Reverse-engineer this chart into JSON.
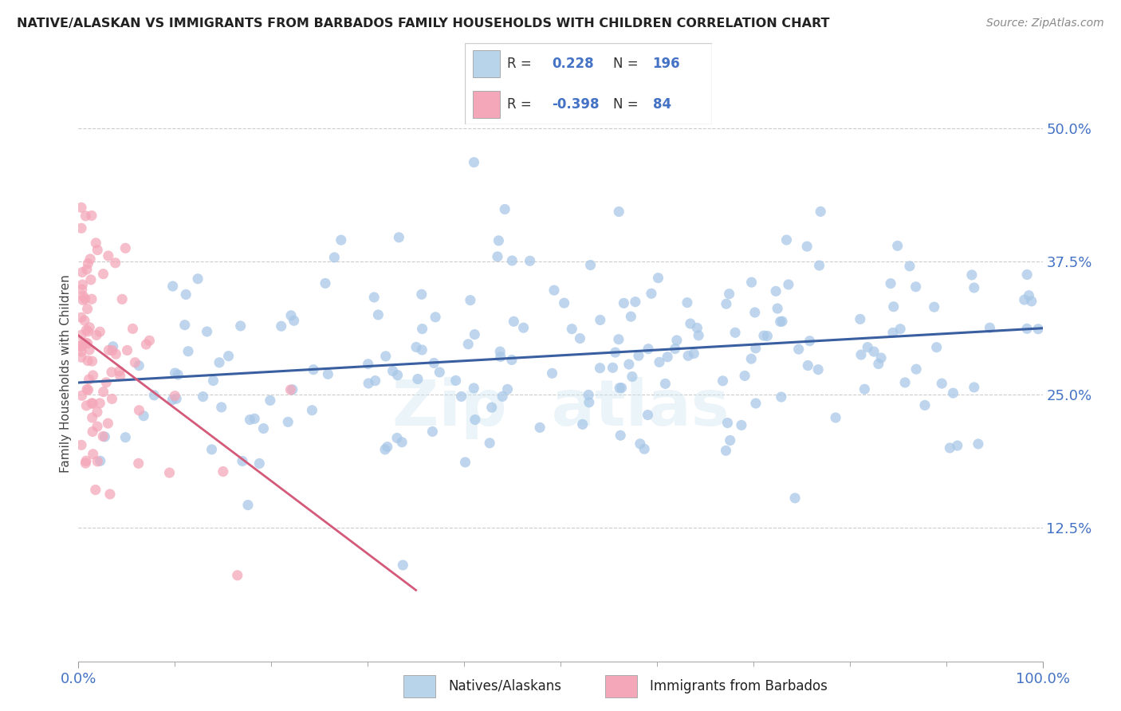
{
  "title": "NATIVE/ALASKAN VS IMMIGRANTS FROM BARBADOS FAMILY HOUSEHOLDS WITH CHILDREN CORRELATION CHART",
  "source": "Source: ZipAtlas.com",
  "ylabel": "Family Households with Children",
  "yticks": [
    "12.5%",
    "25.0%",
    "37.5%",
    "50.0%"
  ],
  "ytick_vals": [
    0.125,
    0.25,
    0.375,
    0.5
  ],
  "blue_R": 0.228,
  "blue_N": 196,
  "pink_R": -0.398,
  "pink_N": 84,
  "blue_color": "#a8c8e8",
  "blue_line_color": "#3a5fa0",
  "pink_color": "#f4a7b9",
  "pink_line_color": "#d45a7a",
  "axis_label_color": "#4472c4",
  "legend_R_color": "#4472c4",
  "legend_N_color": "#4472c4",
  "blue_legend_color": "#b8d4ea",
  "pink_legend_color": "#f4a7b9"
}
